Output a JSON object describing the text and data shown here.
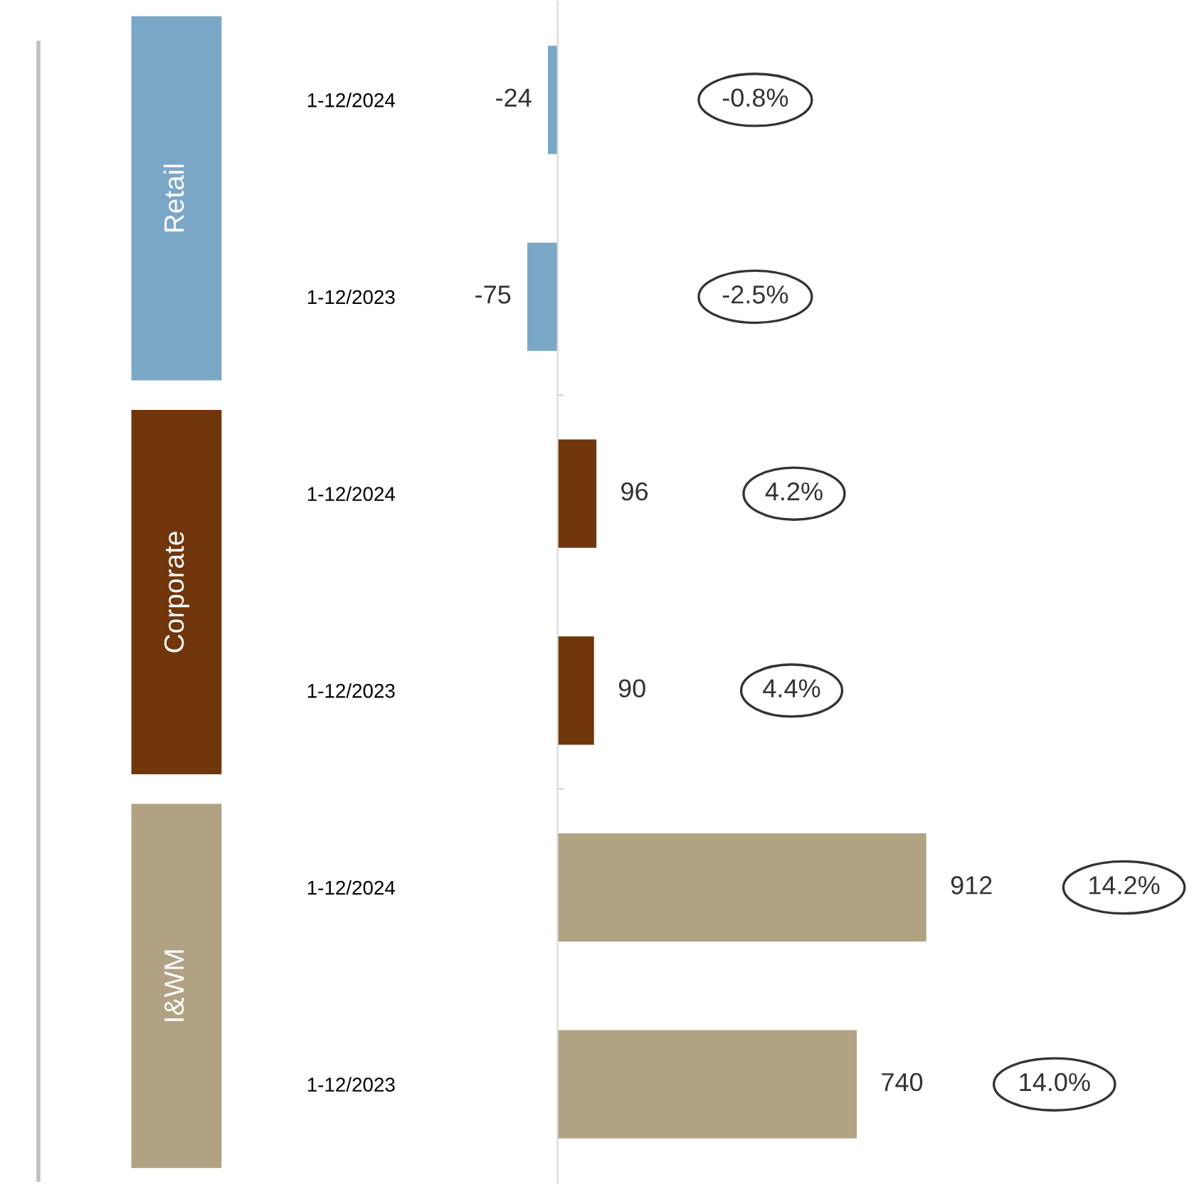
{
  "chart_data": {
    "type": "bar",
    "orientation": "horizontal",
    "categories": [
      "1-12/2024",
      "1-12/2023",
      "1-12/2024",
      "1-12/2023",
      "1-12/2024",
      "1-12/2023"
    ],
    "values": [
      -24,
      -75,
      96,
      90,
      912,
      740
    ],
    "colors": [
      "#7ba7c7",
      "#7ba7c7",
      "#71360c",
      "#71360c",
      "#b1a284",
      "#b1a284"
    ],
    "data_labels": true,
    "tick_labels": "y",
    "grid": false,
    "legend": false,
    "annotations": [
      "-0.8%",
      "-2.5%",
      "4.2%",
      "4.4%",
      "14.2%",
      "14.0%",
      "Retail",
      "Corporate",
      "I&WM"
    ]
  }
}
